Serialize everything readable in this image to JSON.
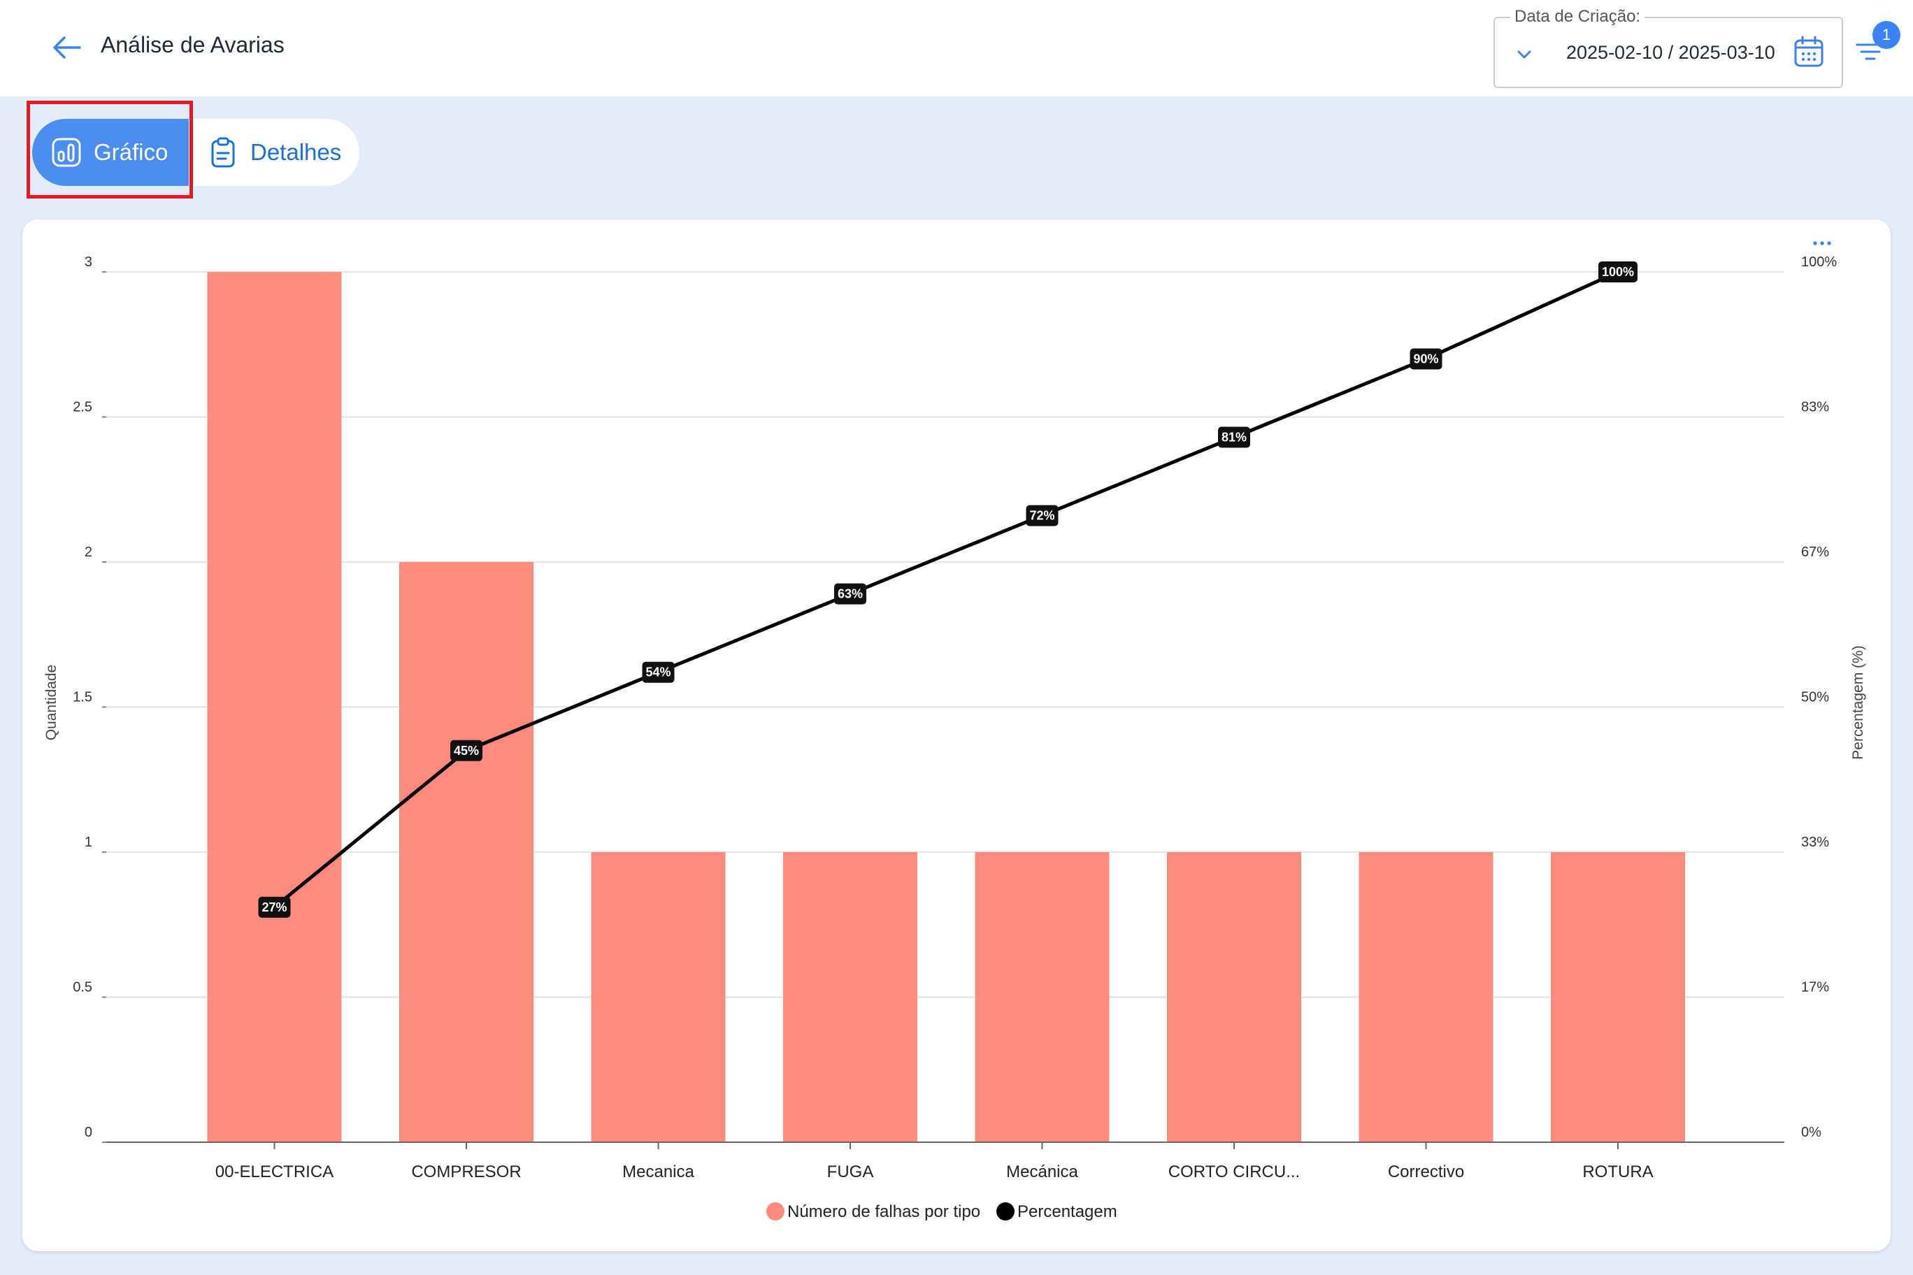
{
  "header": {
    "title": "Análise de Avarias",
    "date_filter": {
      "label": "Data de Criação:",
      "value": "2025-02-10 / 2025-03-10"
    },
    "filter_badge": "1"
  },
  "tabs": [
    {
      "label": "Gráfico",
      "active": true
    },
    {
      "label": "Detalhes",
      "active": false
    }
  ],
  "colors": {
    "accent": "#4b8df0",
    "bar": "#ff8a7e",
    "line": "#000000",
    "highlight": "#e01b24"
  },
  "chart_data": {
    "type": "bar",
    "categories": [
      "00-ELECTRICA",
      "COMPRESOR",
      "Mecanica",
      "FUGA",
      "Mecánica",
      "CORTO CIRCU...",
      "Correctivo",
      "ROTURA"
    ],
    "series": [
      {
        "name": "Número de falhas por tipo",
        "type": "bar",
        "axis": "left",
        "values": [
          3,
          2,
          1,
          1,
          1,
          1,
          1,
          1
        ]
      },
      {
        "name": "Percentagem",
        "type": "line",
        "axis": "right",
        "values": [
          27,
          45,
          54,
          63,
          72,
          81,
          90,
          100
        ],
        "labels": [
          "27%",
          "45%",
          "54%",
          "63%",
          "72%",
          "81%",
          "90%",
          "100%"
        ]
      }
    ],
    "ylabel": "Quantidade",
    "ylabel_right": "Percentagem (%)",
    "ylim": [
      0,
      3
    ],
    "ylim_right": [
      0,
      100
    ],
    "yticks": [
      "0",
      "0.5",
      "1",
      "1.5",
      "2",
      "2.5",
      "3"
    ],
    "yticks_right": [
      "0%",
      "17%",
      "33%",
      "50%",
      "67%",
      "83%",
      "100%"
    ],
    "legend": {
      "position": "bottom",
      "items": [
        "Número de falhas por tipo",
        "Percentagem"
      ]
    },
    "grid": true
  }
}
